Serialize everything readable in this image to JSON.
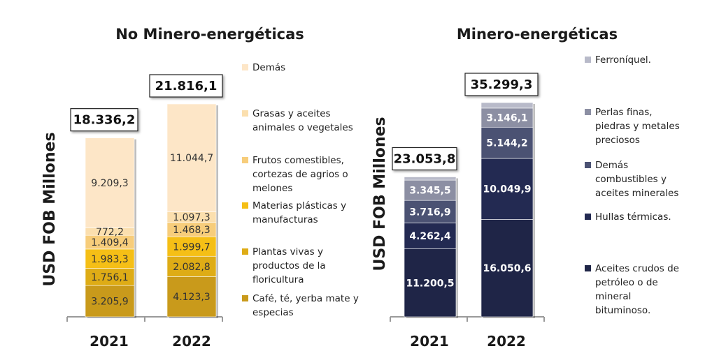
{
  "chart_data": [
    {
      "type": "bar",
      "stacked": true,
      "title": "No Minero-energéticas",
      "ylabel": "USD FOB Millones",
      "categories": [
        "2021",
        "2022"
      ],
      "totals": [
        "18.336,2",
        "21.816,1"
      ],
      "total_values": [
        18336.2,
        21816.1
      ],
      "series": [
        {
          "name": "Café, té, yerba mate y especias",
          "color": "#c99a1b",
          "values": [
            3205.9,
            4123.3
          ],
          "labels": [
            "3.205,9",
            "4.123,3"
          ]
        },
        {
          "name": "Plantas vivas y productos de la floricultura",
          "color": "#deac16",
          "values": [
            1756.1,
            2082.8
          ],
          "labels": [
            "1.756,1",
            "2.082,8"
          ]
        },
        {
          "name": "Materias plásticas y manufacturas",
          "color": "#f5bf16",
          "values": [
            1983.3,
            1999.7
          ],
          "labels": [
            "1.983,3",
            "1.999,7"
          ]
        },
        {
          "name": "Frutos comestibles, cortezas de agrios o melones",
          "color": "#f7cd7b",
          "values": [
            1409.4,
            1468.3
          ],
          "labels": [
            "1.409,4",
            "1.468,3"
          ]
        },
        {
          "name": "Grasas y aceites animales o vegetales",
          "color": "#fbdfae",
          "values": [
            772.2,
            1097.3
          ],
          "labels": [
            "772,2",
            "1.097,3"
          ]
        },
        {
          "name": "Demás",
          "color": "#fde6c7",
          "values": [
            9209.3,
            11044.7
          ],
          "labels": [
            "9.209,3",
            "11.044,7"
          ]
        }
      ]
    },
    {
      "type": "bar",
      "stacked": true,
      "title": "Minero-energéticas",
      "ylabel": "USD FOB Millones",
      "categories": [
        "2021",
        "2022"
      ],
      "totals": [
        "23.053,8",
        "35.299,3"
      ],
      "total_values": [
        23053.8,
        35299.3
      ],
      "series": [
        {
          "name": "Aceites crudos de petróleo o de mineral bituminoso.",
          "color": "#1f2547",
          "values": [
            11200.5,
            16050.6
          ],
          "labels": [
            "11.200,5",
            "16.050,6"
          ]
        },
        {
          "name": "Hullas térmicas.",
          "color": "#232a52",
          "values": [
            4262.4,
            10049.9
          ],
          "labels": [
            "4.262,4",
            "10.049,9"
          ]
        },
        {
          "name": "Demás combustibles y aceites minerales",
          "color": "#4b5273",
          "values": [
            3716.9,
            5144.2
          ],
          "labels": [
            "3.716,9",
            "5.144,2"
          ]
        },
        {
          "name": "Perlas finas, piedras y metales preciosos",
          "color": "#8c8fa3",
          "values": [
            3345.5,
            3146.1
          ],
          "labels": [
            "3.345,5",
            "3.146,1"
          ]
        },
        {
          "name": "Ferroníquel.",
          "color": "#b8bac9",
          "values": [
            528.5,
            908.7
          ],
          "labels": [
            "",
            ""
          ]
        }
      ]
    }
  ]
}
